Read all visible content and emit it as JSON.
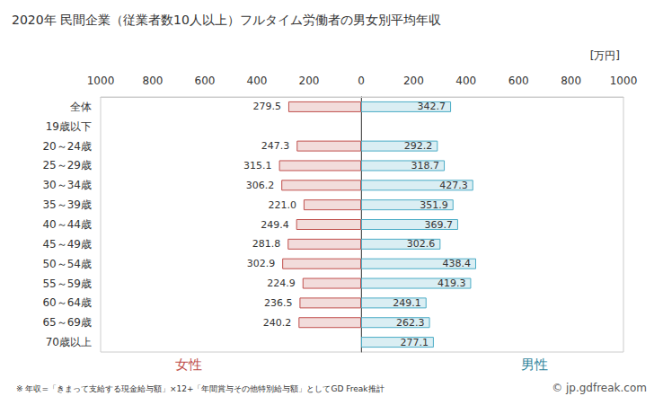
{
  "chart_data": {
    "type": "bar",
    "title": "2020年 民間企業（従業者数10人以上）フルタイム労働者の男女別平均年収",
    "xlabel": "[万円]",
    "orientation": "horizontal",
    "data_labels": true,
    "grid": false,
    "categories": [
      "全体",
      "19歳以下",
      "20～24歳",
      "25～29歳",
      "30～34歳",
      "35～39歳",
      "40～44歳",
      "45～49歳",
      "50～54歳",
      "55～59歳",
      "60～64歳",
      "65～69歳",
      "70歳以上"
    ],
    "series": [
      {
        "name": "女性",
        "color": "#f2dcdb",
        "values": [
          279.5,
          null,
          247.3,
          315.1,
          306.2,
          221.0,
          249.4,
          281.8,
          302.9,
          224.9,
          236.5,
          240.2,
          null
        ],
        "value_labels": [
          "279.5",
          null,
          "247.3",
          "315.1",
          "306.2",
          "221.0",
          "249.4",
          "281.8",
          "302.9",
          "224.9",
          "236.5",
          "240.2",
          null
        ]
      },
      {
        "name": "男性",
        "color": "#daeef3",
        "values": [
          342.7,
          null,
          292.2,
          318.7,
          427.3,
          351.9,
          369.7,
          302.6,
          438.4,
          419.3,
          249.1,
          262.3,
          277.1
        ],
        "value_labels": [
          "342.7",
          null,
          "292.2",
          "318.7",
          "427.3",
          "351.9",
          "369.7",
          "302.6",
          "438.4",
          "419.3",
          "249.1",
          "262.3",
          "277.1"
        ]
      }
    ],
    "xlim": [
      0,
      1000
    ],
    "xticks": [
      0,
      200,
      400,
      600,
      800,
      1000
    ],
    "annotations": [
      "※ 年収=「きまって支給する現金給与額」×12+「年間賞与その他特別給与額」としてGD Freak推計",
      "© jp.gdfreak.com"
    ]
  }
}
